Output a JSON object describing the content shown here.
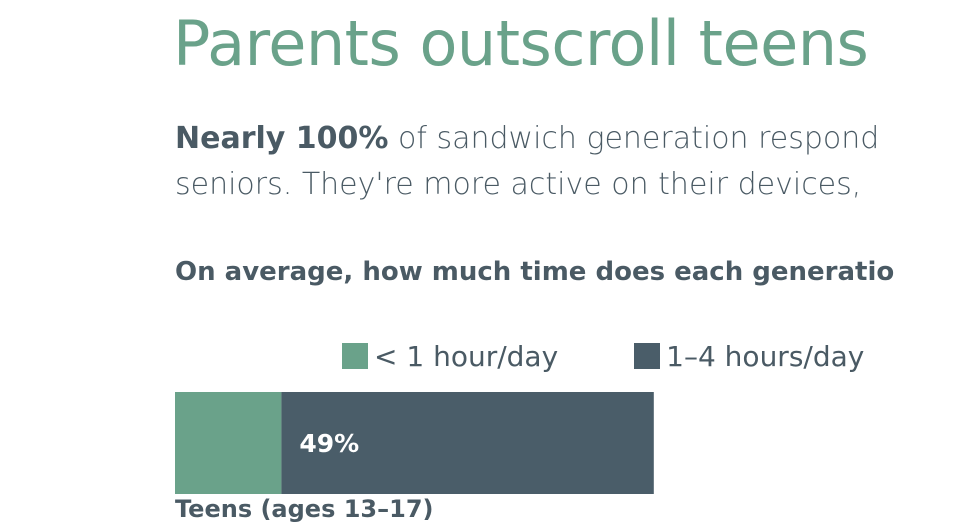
{
  "title": "Parents outscroll teens",
  "intro": {
    "bold_lead": "Nearly 100%",
    "line1_rest": " of sandwich generation respond",
    "line2": "seniors. They're more active on their devices,"
  },
  "chart_data": {
    "type": "bar",
    "orientation": "horizontal",
    "stacked": true,
    "question": "On average, how much time does each generatio",
    "categories": [
      "Teens (ages 13–17)"
    ],
    "series": [
      {
        "name": "< 1 hour/day",
        "color": "#6aa28a",
        "values": [
          14
        ]
      },
      {
        "name": "1–4 hours/day",
        "color": "#4a5d69",
        "values": [
          49
        ]
      }
    ],
    "data_labels": [
      "",
      "49%"
    ],
    "visible_max": 100,
    "legend": "top"
  }
}
